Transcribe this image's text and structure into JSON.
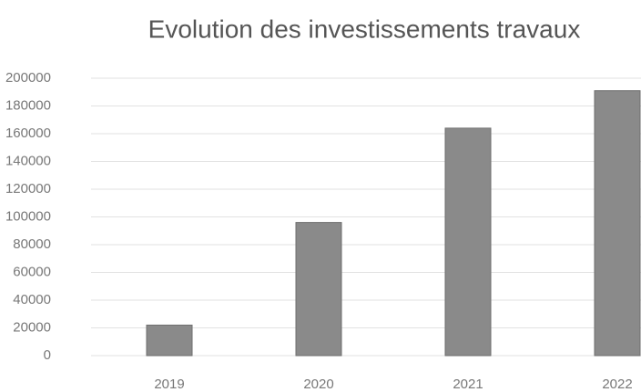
{
  "chart_data": {
    "type": "bar",
    "title": "Evolution des investissements travaux",
    "categories": [
      "2019",
      "2020",
      "2021",
      "2022"
    ],
    "values": [
      22000,
      96000,
      164000,
      191000
    ],
    "color": "#8a8a8a",
    "ylim": [
      0,
      200000
    ],
    "yticks": [
      0,
      20000,
      40000,
      60000,
      80000,
      100000,
      120000,
      140000,
      160000,
      180000,
      200000
    ],
    "grid": true
  }
}
